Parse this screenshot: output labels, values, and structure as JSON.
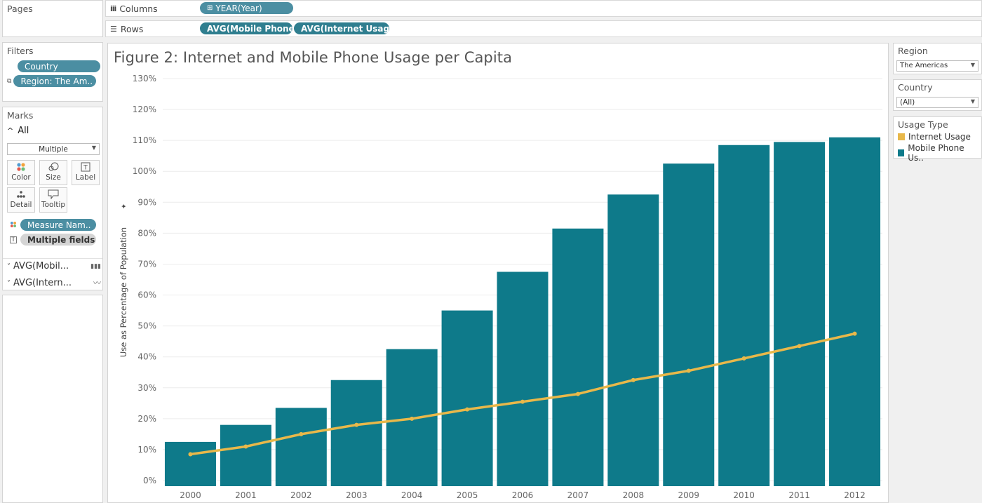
{
  "pages": {
    "title": "Pages"
  },
  "columns": {
    "label": "Columns",
    "pills": [
      "YEAR(Year)"
    ]
  },
  "rows": {
    "label": "Rows",
    "pills": [
      "AVG(Mobile Phone..",
      "AVG(Internet Usag.."
    ]
  },
  "filters": {
    "title": "Filters",
    "items": [
      "Country",
      "Region: The Am.."
    ]
  },
  "marks": {
    "title": "Marks",
    "all_label": "All",
    "type_value": "Multiple",
    "buttons": [
      "Color",
      "Size",
      "Label",
      "Detail",
      "Tooltip"
    ],
    "pills": [
      "Measure Nam..",
      "Multiple fields"
    ],
    "cards": [
      "AVG(Mobil...",
      "AVG(Intern..."
    ]
  },
  "region_filter": {
    "title": "Region",
    "value": "The Americas"
  },
  "country_filter": {
    "title": "Country",
    "value": "(All)"
  },
  "legend": {
    "title": "Usage Type",
    "items": [
      {
        "label": "Internet Usage",
        "color": "#e8b84a"
      },
      {
        "label": "Mobile Phone Us..",
        "color": "#0e7a8a"
      }
    ]
  },
  "chart_data": {
    "type": "bar+line",
    "title": "Figure 2: Internet and Mobile Phone Usage per Capita",
    "ylabel": "Use as Percentage of Population",
    "xlabel": "",
    "ylim": [
      0,
      130
    ],
    "yticks": [
      "0%",
      "10%",
      "20%",
      "30%",
      "40%",
      "50%",
      "60%",
      "70%",
      "80%",
      "90%",
      "100%",
      "110%",
      "120%",
      "130%"
    ],
    "categories": [
      "2000",
      "2001",
      "2002",
      "2003",
      "2004",
      "2005",
      "2006",
      "2007",
      "2008",
      "2009",
      "2010",
      "2011",
      "2012"
    ],
    "series": [
      {
        "name": "Mobile Phone Us..",
        "type": "bar",
        "color": "#0e7a8a",
        "values": [
          12.5,
          18,
          23.5,
          32.5,
          42.5,
          55,
          67.5,
          81.5,
          92.5,
          102.5,
          108.5,
          109.5,
          111
        ]
      },
      {
        "name": "Internet Usage",
        "type": "line",
        "color": "#e8b84a",
        "values": [
          8.5,
          11,
          15,
          18,
          20,
          23,
          25.5,
          28,
          32.5,
          35.5,
          39.5,
          43.5,
          47.5
        ]
      }
    ],
    "grid": true
  }
}
